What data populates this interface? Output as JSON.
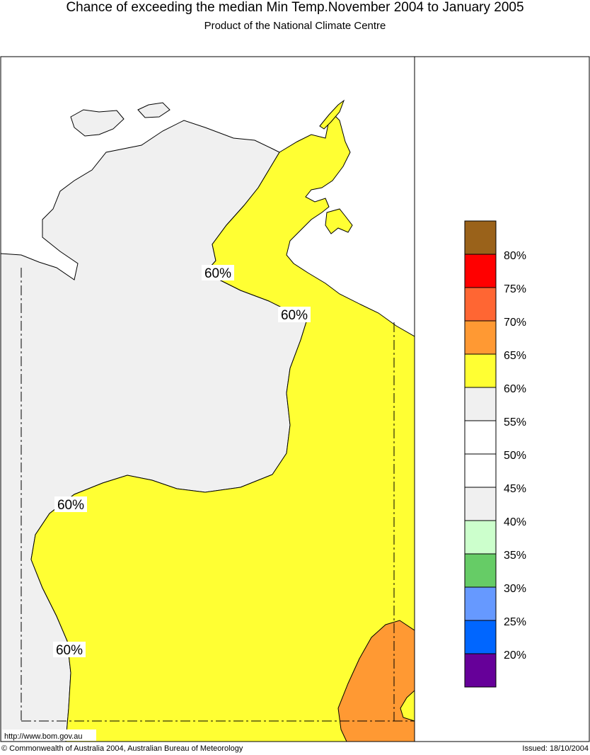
{
  "header": {
    "title": "Chance of exceeding the median Min Temp.November 2004 to January 2005",
    "subtitle": "Product of the National Climate Centre"
  },
  "map": {
    "contour_labels": [
      "60%",
      "60%",
      "60%",
      "60%"
    ],
    "url_text": "http://www.bom.gov.au",
    "colors": {
      "sea": "#ffffff",
      "land_low": "#f0f0f0",
      "band_60_65": "#ffff33",
      "band_65_70": "#ff9933"
    }
  },
  "legend": {
    "bands": [
      {
        "range": "above 80%",
        "color": "#9a621a"
      },
      {
        "range": "75-80%",
        "color": "#ff0000"
      },
      {
        "range": "70-75%",
        "color": "#ff6633"
      },
      {
        "range": "65-70%",
        "color": "#ff9933"
      },
      {
        "range": "60-65%",
        "color": "#ffff33"
      },
      {
        "range": "55-60%",
        "color": "#f0f0f0"
      },
      {
        "range": "50-55%",
        "color": "#ffffff"
      },
      {
        "range": "45-50%",
        "color": "#ffffff"
      },
      {
        "range": "40-45%",
        "color": "#f0f0f0"
      },
      {
        "range": "35-40%",
        "color": "#ccffcc"
      },
      {
        "range": "30-35%",
        "color": "#66cc66"
      },
      {
        "range": "25-30%",
        "color": "#6699ff"
      },
      {
        "range": "20-25%",
        "color": "#0066ff"
      },
      {
        "range": "below 20%",
        "color": "#660099"
      }
    ],
    "labels": [
      "80%",
      "75%",
      "70%",
      "65%",
      "60%",
      "55%",
      "50%",
      "45%",
      "40%",
      "35%",
      "30%",
      "25%",
      "20%"
    ]
  },
  "footer": {
    "copyright": "© Commonwealth of Australia 2004, Australian Bureau of Meteorology",
    "issued": "Issued: 18/10/2004"
  }
}
